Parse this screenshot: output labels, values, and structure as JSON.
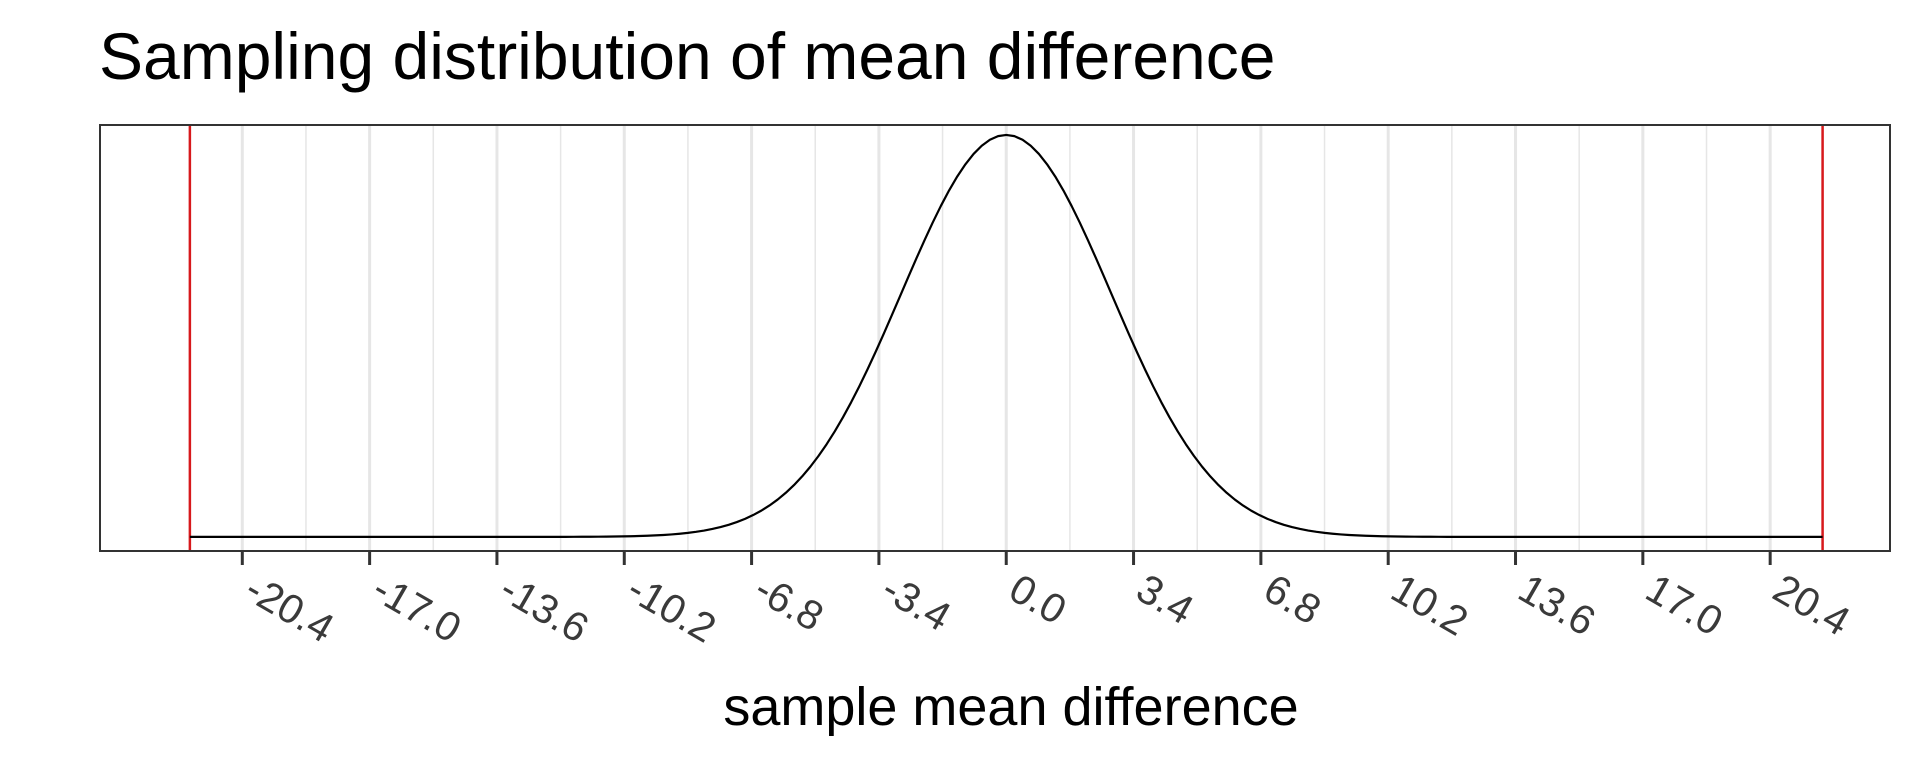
{
  "chart_data": {
    "type": "line",
    "title": "Sampling distribution of mean difference",
    "xlabel": "sample mean difference",
    "ylabel": "",
    "x_ticks": [
      "-20.4",
      "-17.0",
      "-13.6",
      "-10.2",
      "-6.8",
      "-3.4",
      "0.0",
      "3.4",
      "6.8",
      "10.2",
      "13.6",
      "17.0",
      "20.4"
    ],
    "xlim": [
      -24.2,
      23.6
    ],
    "ylim": [
      -0.005,
      0.146
    ],
    "grid": true,
    "y_axis_labels": false,
    "curve": {
      "type": "normal-density",
      "mean": 0.0,
      "sd": 2.8,
      "x_from": -21.8,
      "x_to": 21.8
    },
    "reference_lines": [
      {
        "x": -21.8,
        "color": "#d7191c"
      },
      {
        "x": 21.8,
        "color": "#d7191c"
      }
    ],
    "colors": {
      "curve": "#000000",
      "reference": "#d7191c",
      "grid": "#e6e6e6",
      "panel_border": "#333333"
    }
  }
}
